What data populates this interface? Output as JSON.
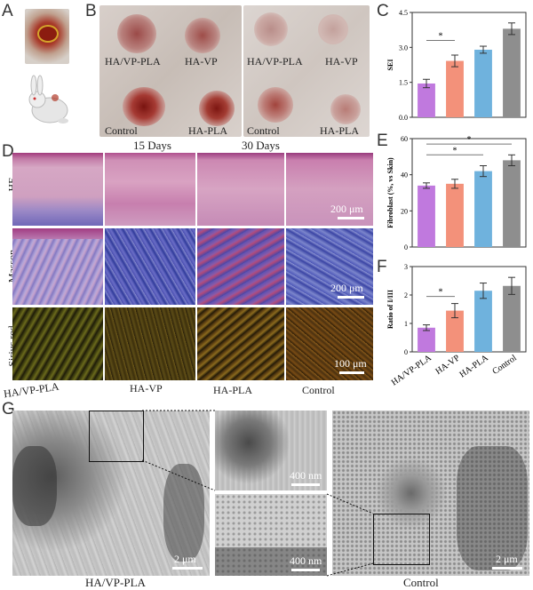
{
  "panels": {
    "a": "A",
    "b": "B",
    "c": "C",
    "d": "D",
    "e": "E",
    "f": "F",
    "g": "G"
  },
  "photoB1": {
    "tl": "HA/VP-PLA",
    "tr": "HA-VP",
    "bl": "Control",
    "br": "HA-PLA"
  },
  "photoB2": {
    "tl": "HA/VP-PLA",
    "tr": "HA-VP",
    "bl": "Control",
    "br": "HA-PLA"
  },
  "days": {
    "d15": "15 Days",
    "d30": "30 Days"
  },
  "histo": {
    "rows": [
      "HE",
      "Masson",
      "Sirius red"
    ],
    "cols": [
      "HA/VP-PLA",
      "HA-VP",
      "HA-PLA",
      "Control"
    ],
    "scale": [
      "200 μm",
      "200 μm",
      "100 μm"
    ]
  },
  "chart_data": [
    {
      "type": "bar",
      "ylabel": "SEI",
      "ylim": [
        0,
        4.5
      ],
      "yticks": [
        "0.0",
        "1.5",
        "3.0",
        "4.5"
      ],
      "categories": [
        "HA/VP-PLA",
        "HA-VP",
        "HA-PLA",
        "Control"
      ],
      "values": [
        1.45,
        2.42,
        2.9,
        3.8
      ],
      "errors": [
        0.18,
        0.25,
        0.15,
        0.25
      ],
      "colors": [
        "#c079de",
        "#f3917a",
        "#6fb2dd",
        "#8e8e8e"
      ],
      "sig": [
        "*"
      ]
    },
    {
      "type": "bar",
      "ylabel": "Fibroblast (%, vs Skin)",
      "ylim": [
        0,
        60
      ],
      "yticks": [
        "0",
        "20",
        "40",
        "60"
      ],
      "categories": [
        "HA/VP-PLA",
        "HA-VP",
        "HA-PLA",
        "Control"
      ],
      "values": [
        34,
        35,
        42,
        48
      ],
      "errors": [
        1.5,
        2.5,
        3,
        3
      ],
      "colors": [
        "#c079de",
        "#f3917a",
        "#6fb2dd",
        "#8e8e8e"
      ],
      "sig": [
        "*",
        "*"
      ]
    },
    {
      "type": "bar",
      "ylabel": "Ratio of I/III",
      "ylim": [
        0,
        3
      ],
      "yticks": [
        "0",
        "1",
        "2",
        "3"
      ],
      "categories": [
        "HA/VP-PLA",
        "HA-VP",
        "HA-PLA",
        "Control"
      ],
      "values": [
        0.85,
        1.45,
        2.15,
        2.32
      ],
      "errors": [
        0.1,
        0.25,
        0.27,
        0.3
      ],
      "colors": [
        "#c079de",
        "#f3917a",
        "#6fb2dd",
        "#8e8e8e"
      ],
      "sig": [
        "*"
      ]
    }
  ],
  "tem": {
    "scale1": "2 μm",
    "scale2": "400 nm",
    "scale3": "400 nm",
    "scale4": "2 μm",
    "cap1": "HA/VP-PLA",
    "cap2": "Control"
  }
}
